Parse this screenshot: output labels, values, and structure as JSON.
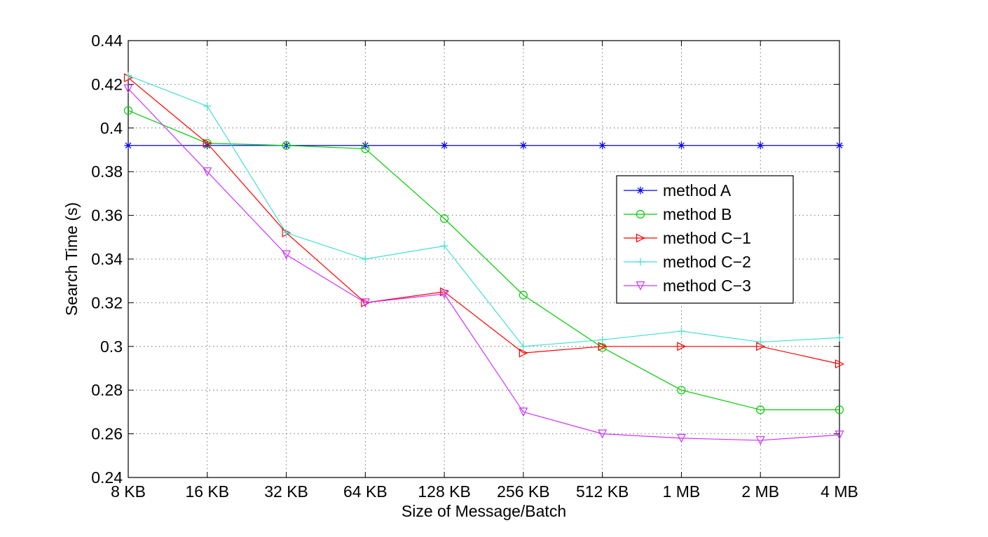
{
  "chart_data": {
    "type": "line",
    "title": "",
    "xlabel": "Size of Message/Batch",
    "ylabel": "Search Time (s)",
    "categories": [
      "8 KB",
      "16 KB",
      "32 KB",
      "64 KB",
      "128 KB",
      "256 KB",
      "512 KB",
      "1 MB",
      "2 MB",
      "4 MB"
    ],
    "ylim": [
      0.24,
      0.44
    ],
    "yticks": [
      "0.24",
      "0.26",
      "0.28",
      "0.3",
      "0.32",
      "0.34",
      "0.36",
      "0.38",
      "0.4",
      "0.42",
      "0.44"
    ],
    "grid": true,
    "legend_position": "right",
    "series": [
      {
        "name": "method A",
        "color": "#0000ff",
        "marker": "star",
        "values": [
          0.392,
          0.392,
          0.392,
          0.392,
          0.392,
          0.392,
          0.392,
          0.392,
          0.392,
          0.392
        ]
      },
      {
        "name": "method B",
        "color": "#00cc00",
        "marker": "circle",
        "values": [
          0.408,
          0.393,
          0.392,
          0.3905,
          0.3585,
          0.3235,
          0.2995,
          0.28,
          0.271,
          0.271
        ]
      },
      {
        "name": "method C−1",
        "color": "#ff0000",
        "marker": "triangle-right",
        "values": [
          0.423,
          0.393,
          0.352,
          0.32,
          0.325,
          0.297,
          0.3,
          0.3,
          0.3,
          0.292
        ]
      },
      {
        "name": "method C−2",
        "color": "#40e0d0",
        "marker": "plus",
        "values": [
          0.424,
          0.41,
          0.352,
          0.34,
          0.346,
          0.3,
          0.303,
          0.307,
          0.302,
          0.304
        ]
      },
      {
        "name": "method C−3",
        "color": "#cc33ff",
        "marker": "triangle-down",
        "values": [
          0.418,
          0.38,
          0.342,
          0.32,
          0.324,
          0.27,
          0.26,
          0.258,
          0.257,
          0.2595
        ]
      }
    ]
  }
}
